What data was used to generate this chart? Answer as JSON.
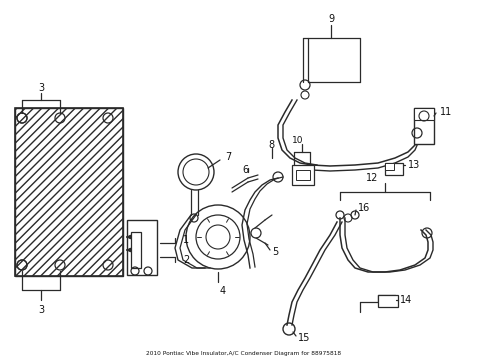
{
  "title": "2010 Pontiac Vibe Insulator,A/C Condenser Diagram for 88975818",
  "bg_color": "#ffffff",
  "line_color": "#2a2a2a",
  "label_color": "#111111",
  "fig_width": 4.89,
  "fig_height": 3.6,
  "dpi": 100
}
